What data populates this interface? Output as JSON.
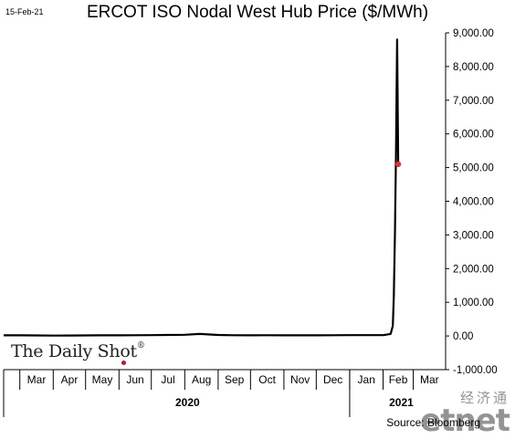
{
  "header": {
    "date_stamp": "15-Feb-21",
    "title": "ERCOT ISO Nodal West Hub Price ($/MWh)"
  },
  "branding": {
    "name": "The Daily Shot",
    "registered_mark": "®",
    "accent_color": "#c8102e"
  },
  "footer": {
    "source": "Source: Bloomberg"
  },
  "watermark": {
    "cn": "经济通",
    "en": "etnet"
  },
  "chart_data": {
    "type": "line",
    "title": "ERCOT ISO Nodal West Hub Price ($/MWh)",
    "xlabel": "",
    "ylabel": "",
    "ylim": [
      -1000,
      9000
    ],
    "y_ticks": [
      9000,
      8000,
      7000,
      6000,
      5000,
      4000,
      3000,
      2000,
      1000,
      0,
      -1000
    ],
    "y_tick_labels": [
      "9,000.00",
      "8,000.00",
      "7,000.00",
      "6,000.00",
      "5,000.00",
      "4,000.00",
      "3,000.00",
      "2,000.00",
      "1,000.00",
      "0.00",
      "-1,000.00"
    ],
    "x_month_labels": [
      "Mar",
      "Apr",
      "May",
      "Jun",
      "Jul",
      "Aug",
      "Sep",
      "Oct",
      "Nov",
      "Dec",
      "Jan",
      "Feb",
      "Mar"
    ],
    "x_year_labels": [
      {
        "label": "2020",
        "start_month": 0,
        "end_month": 10
      },
      {
        "label": "2021",
        "start_month": 10,
        "end_month": 13
      }
    ],
    "x_start": "2020-02-15",
    "x_end": "2021-03-31",
    "grid": false,
    "legend": "none",
    "line_color": "#000000",
    "marker_color": "#e03030",
    "series": [
      {
        "points": [
          [
            "2020-02-15",
            20
          ],
          [
            "2020-03-01",
            18
          ],
          [
            "2020-03-15",
            15
          ],
          [
            "2020-04-01",
            12
          ],
          [
            "2020-04-15",
            14
          ],
          [
            "2020-05-01",
            15
          ],
          [
            "2020-05-15",
            18
          ],
          [
            "2020-06-01",
            20
          ],
          [
            "2020-06-15",
            22
          ],
          [
            "2020-07-01",
            25
          ],
          [
            "2020-07-15",
            30
          ],
          [
            "2020-08-01",
            35
          ],
          [
            "2020-08-15",
            60
          ],
          [
            "2020-09-01",
            30
          ],
          [
            "2020-09-15",
            22
          ],
          [
            "2020-10-01",
            20
          ],
          [
            "2020-10-15",
            22
          ],
          [
            "2020-11-01",
            20
          ],
          [
            "2020-11-15",
            18
          ],
          [
            "2020-12-01",
            20
          ],
          [
            "2020-12-15",
            22
          ],
          [
            "2021-01-01",
            24
          ],
          [
            "2021-01-15",
            25
          ],
          [
            "2021-02-01",
            25
          ],
          [
            "2021-02-08",
            60
          ],
          [
            "2021-02-10",
            300
          ],
          [
            "2021-02-11",
            1200
          ],
          [
            "2021-02-12",
            3000
          ],
          [
            "2021-02-13",
            5500
          ],
          [
            "2021-02-14",
            8800
          ],
          [
            "2021-02-15",
            5100
          ]
        ]
      }
    ],
    "last_value_marker": {
      "x": "2021-02-15",
      "y": 5100
    }
  }
}
